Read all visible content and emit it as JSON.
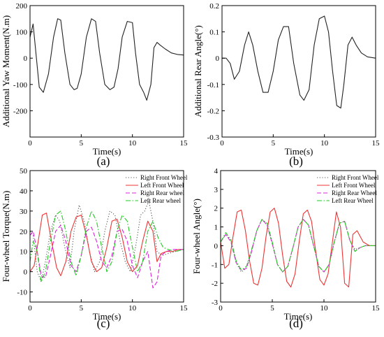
{
  "chart_data": [
    {
      "panel": "(a)",
      "type": "line",
      "xlabel": "Time(s)",
      "ylabel": "Additional Yaw Moment(N.m)",
      "xlim": [
        0,
        15
      ],
      "ylim": [
        -300,
        200
      ],
      "xticks": [
        0,
        5,
        10,
        15
      ],
      "yticks": [
        200,
        100,
        0,
        -100,
        -200
      ],
      "grid": false,
      "series": [
        {
          "color": "#222222",
          "style": "solid",
          "x": [
            0,
            0.3,
            0.6,
            0.9,
            1.3,
            1.8,
            2.3,
            2.7,
            3.0,
            3.4,
            3.9,
            4.3,
            4.6,
            5.0,
            5.5,
            6.0,
            6.4,
            6.8,
            7.3,
            7.8,
            8.2,
            8.6,
            9.0,
            9.5,
            10.0,
            10.3,
            10.7,
            11.1,
            11.4,
            11.8,
            12.1,
            12.4,
            12.7,
            13.2,
            13.8,
            14.4,
            15.0
          ],
          "y": [
            80,
            130,
            10,
            -110,
            -130,
            -60,
            80,
            150,
            145,
            20,
            -100,
            -120,
            -115,
            -60,
            80,
            150,
            140,
            20,
            -100,
            -120,
            -110,
            -40,
            80,
            140,
            135,
            20,
            -100,
            -130,
            -160,
            -100,
            40,
            60,
            50,
            35,
            20,
            14,
            12
          ]
        }
      ]
    },
    {
      "panel": "(b)",
      "type": "line",
      "xlabel": "Time(s)",
      "ylabel": "Additional Rear Angle(°)",
      "xlim": [
        0,
        15
      ],
      "ylim": [
        -0.3,
        0.2
      ],
      "xticks": [
        0,
        5,
        10,
        15
      ],
      "yticks": [
        0.2,
        0.1,
        0.0,
        -0.1,
        -0.2,
        -0.3
      ],
      "grid": false,
      "series": [
        {
          "color": "#222222",
          "style": "solid",
          "x": [
            0,
            0.4,
            0.8,
            1.2,
            1.7,
            2.2,
            2.6,
            3.0,
            3.5,
            4.0,
            4.5,
            5.0,
            5.5,
            6.0,
            6.5,
            7.0,
            7.6,
            8.0,
            8.5,
            9.0,
            9.5,
            10.0,
            10.4,
            10.8,
            11.2,
            11.6,
            11.9,
            12.3,
            12.7,
            13.1,
            13.6,
            14.2,
            15.0
          ],
          "y": [
            0.0,
            0.0,
            -0.02,
            -0.08,
            -0.05,
            0.05,
            0.1,
            0.05,
            -0.05,
            -0.13,
            -0.13,
            -0.05,
            0.07,
            0.12,
            0.12,
            -0.02,
            -0.14,
            -0.16,
            -0.12,
            0.05,
            0.15,
            0.16,
            0.1,
            -0.05,
            -0.18,
            -0.19,
            -0.1,
            0.05,
            0.08,
            0.05,
            0.02,
            0.005,
            0.0
          ]
        }
      ]
    },
    {
      "panel": "(c)",
      "type": "line",
      "xlabel": "Time(s)",
      "ylabel": "Four-wheel Torque(N.m)",
      "xlim": [
        0,
        15
      ],
      "ylim": [
        -15,
        50
      ],
      "xticks": [
        0,
        5,
        10,
        15
      ],
      "yticks": [
        50,
        40,
        30,
        20,
        10,
        0,
        -10
      ],
      "grid": false,
      "legend_position": "top-right",
      "series": [
        {
          "name": "Right Front Wheel",
          "color": "#555555",
          "style": "dotted",
          "x": [
            0,
            0.3,
            0.7,
            1.1,
            1.5,
            2.0,
            2.5,
            2.9,
            3.4,
            3.9,
            4.3,
            4.8,
            5.3,
            5.8,
            6.3,
            6.8,
            7.3,
            7.8,
            8.3,
            8.8,
            9.3,
            9.8,
            10.3,
            10.8,
            11.2,
            11.6,
            12.0,
            12.4,
            12.9,
            13.5,
            14.2,
            15.0
          ],
          "y": [
            20,
            18,
            0,
            -5,
            5,
            20,
            28,
            25,
            12,
            2,
            20,
            33,
            25,
            10,
            0,
            5,
            20,
            30,
            28,
            15,
            5,
            0,
            12,
            28,
            30,
            35,
            25,
            10,
            8,
            9,
            10,
            11
          ]
        },
        {
          "name": "Left Front Wheel",
          "color": "#ee3333",
          "style": "solid",
          "x": [
            0,
            0.4,
            0.8,
            1.2,
            1.6,
            2.1,
            2.6,
            3.0,
            3.5,
            4.0,
            4.5,
            5.0,
            5.5,
            6.0,
            6.5,
            7.0,
            7.5,
            8.0,
            8.5,
            9.0,
            9.5,
            10.0,
            10.5,
            11.0,
            11.5,
            12.0,
            12.4,
            12.8,
            13.3,
            13.9,
            14.5,
            15.0
          ],
          "y": [
            0,
            3,
            15,
            28,
            29,
            15,
            2,
            -2,
            5,
            20,
            27,
            28,
            18,
            5,
            0,
            2,
            12,
            25,
            26,
            17,
            5,
            0,
            3,
            15,
            25,
            20,
            5,
            9,
            10,
            10,
            11,
            11
          ]
        },
        {
          "name": "Right Rear wheel",
          "color": "#dd22dd",
          "style": "dashed",
          "x": [
            0,
            0.3,
            0.7,
            1.1,
            1.5,
            2.0,
            2.5,
            3.0,
            3.5,
            4.0,
            4.5,
            5.0,
            5.5,
            6.0,
            6.5,
            7.0,
            7.5,
            8.0,
            8.5,
            9.0,
            9.5,
            10.0,
            10.5,
            11.0,
            11.5,
            12.0,
            12.4,
            12.8,
            13.3,
            14.0,
            15.0
          ],
          "y": [
            18,
            20,
            10,
            -2,
            -3,
            8,
            20,
            23,
            15,
            3,
            0,
            8,
            20,
            22,
            15,
            5,
            2,
            8,
            20,
            21,
            15,
            3,
            -3,
            5,
            10,
            -8,
            -5,
            8,
            10,
            11,
            11
          ]
        },
        {
          "name": "Left Rear wheel",
          "color": "#22cc22",
          "style": "dashdot",
          "x": [
            0,
            0.3,
            0.7,
            1.1,
            1.5,
            2.0,
            2.5,
            3.0,
            3.5,
            4.0,
            4.5,
            5.0,
            5.5,
            6.0,
            6.5,
            7.0,
            7.5,
            8.0,
            8.5,
            9.0,
            9.5,
            10.0,
            10.5,
            11.0,
            11.5,
            12.0,
            12.5,
            13.0,
            13.5,
            14.2,
            15.0
          ],
          "y": [
            5,
            15,
            10,
            -5,
            0,
            15,
            28,
            30,
            20,
            5,
            -2,
            8,
            22,
            30,
            25,
            12,
            0,
            5,
            20,
            28,
            25,
            12,
            0,
            5,
            20,
            25,
            17,
            12,
            11,
            10,
            11
          ]
        }
      ]
    },
    {
      "panel": "(d)",
      "type": "line",
      "xlabel": "Time(s)",
      "ylabel": "Four-wheel Angle(°)",
      "xlim": [
        0,
        15
      ],
      "ylim": [
        -3,
        4
      ],
      "xticks": [
        0,
        5,
        10,
        15
      ],
      "yticks": [
        4,
        3,
        2,
        1,
        0,
        -1,
        -2,
        -3
      ],
      "grid": false,
      "legend_position": "top-right",
      "series": [
        {
          "name": "Right Front Wheel",
          "color": "#555555",
          "style": "dotted",
          "x": [
            0,
            0.5,
            1.0,
            1.5,
            2.0,
            2.5,
            3.0,
            3.5,
            4.0,
            4.5,
            5.0,
            5.5,
            6.0,
            6.5,
            7.0,
            7.5,
            8.0,
            8.5,
            9.0,
            9.5,
            10.0,
            10.5,
            11.0,
            11.5,
            12.0,
            12.5,
            13.0,
            13.5,
            14.0,
            14.5,
            15.0
          ],
          "y": [
            0.2,
            0.6,
            0.3,
            -0.9,
            -1.4,
            -1.2,
            -0.3,
            0.8,
            1.4,
            1.1,
            0.1,
            -1.0,
            -1.4,
            -1.1,
            -0.1,
            1.0,
            1.4,
            1.1,
            0.0,
            -1.1,
            -1.4,
            -1.0,
            0.2,
            1.2,
            1.3,
            0.3,
            -0.2,
            -0.1,
            0.0,
            0.0,
            0.0
          ]
        },
        {
          "name": "Left Front Wheel",
          "color": "#ee3333",
          "style": "solid",
          "x": [
            0,
            0.4,
            0.8,
            1.2,
            1.6,
            2.0,
            2.4,
            2.8,
            3.2,
            3.6,
            4.0,
            4.4,
            4.8,
            5.2,
            5.6,
            6.0,
            6.4,
            6.8,
            7.2,
            7.6,
            8.0,
            8.4,
            8.8,
            9.2,
            9.6,
            10.0,
            10.4,
            10.8,
            11.2,
            11.6,
            12.0,
            12.4,
            12.8,
            13.2,
            13.8,
            14.4,
            15.0
          ],
          "y": [
            0.2,
            -1.2,
            -1.0,
            0.5,
            1.8,
            1.9,
            0.8,
            -0.8,
            -2.0,
            -2.1,
            -1.2,
            0.5,
            1.8,
            2.0,
            1.2,
            -0.5,
            -1.9,
            -2.2,
            -1.5,
            0.2,
            1.7,
            1.9,
            1.3,
            -0.3,
            -1.8,
            -2.1,
            -1.5,
            0.1,
            1.8,
            1.0,
            -2.0,
            -2.2,
            0.6,
            0.8,
            0.2,
            0.0,
            0.0
          ]
        },
        {
          "name": "Right Rear Wheel",
          "color": "#dd22dd",
          "style": "dashed",
          "x": [
            0,
            0.5,
            1.0,
            1.5,
            2.0,
            2.5,
            3.0,
            3.5,
            4.0,
            4.5,
            5.0,
            5.5,
            6.0,
            6.5,
            7.0,
            7.5,
            8.0,
            8.5,
            9.0,
            9.5,
            10.0,
            10.5,
            11.0,
            11.5,
            12.0,
            12.5,
            13.0,
            13.5,
            14.0,
            14.5,
            15.0
          ],
          "y": [
            0.2,
            0.6,
            0.2,
            -0.9,
            -1.3,
            -1.2,
            -0.3,
            0.8,
            1.4,
            1.1,
            0.1,
            -1.0,
            -1.4,
            -1.1,
            -0.1,
            1.0,
            1.4,
            1.1,
            0.0,
            -1.1,
            -1.4,
            -1.0,
            0.2,
            1.2,
            1.3,
            0.3,
            -0.3,
            -0.1,
            0.0,
            0.0,
            0.0
          ]
        },
        {
          "name": "Left Rear Wheel",
          "color": "#22cc22",
          "style": "dashdot",
          "x": [
            0,
            0.5,
            1.0,
            1.5,
            2.0,
            2.5,
            3.0,
            3.5,
            4.0,
            4.5,
            5.0,
            5.5,
            6.0,
            6.5,
            7.0,
            7.5,
            8.0,
            8.5,
            9.0,
            9.5,
            10.0,
            10.5,
            11.0,
            11.5,
            12.0,
            12.5,
            13.0,
            13.5,
            14.0,
            14.5,
            15.0
          ],
          "y": [
            0.2,
            0.7,
            0.3,
            -0.8,
            -1.3,
            -1.1,
            -0.2,
            0.8,
            1.4,
            1.2,
            0.2,
            -1.0,
            -1.4,
            -1.1,
            -0.1,
            1.0,
            1.4,
            1.1,
            0.0,
            -1.1,
            -1.4,
            -1.0,
            0.2,
            1.2,
            1.3,
            0.3,
            -0.3,
            -0.1,
            0.0,
            0.0,
            0.0
          ]
        }
      ]
    }
  ]
}
